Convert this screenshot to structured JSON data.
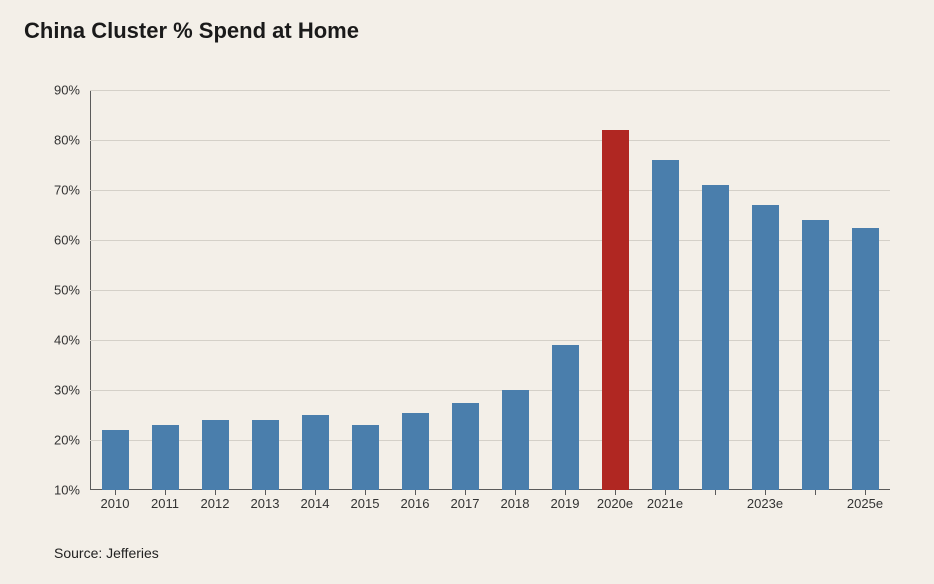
{
  "title": "China Cluster % Spend at Home",
  "source": "Source: Jefferies",
  "chart": {
    "type": "bar",
    "ymin": 10,
    "ymax": 90,
    "ytick_step": 10,
    "ytick_suffix": "%",
    "background_color": "#f3efe8",
    "grid_color": "#d4d0c8",
    "axis_color": "#5a5a5a",
    "title_fontsize": 22,
    "label_fontsize": 13,
    "bar_width_ratio": 0.54,
    "default_bar_color": "#4a7eac",
    "categories": [
      "2010",
      "2011",
      "2012",
      "2013",
      "2014",
      "2015",
      "2016",
      "2017",
      "2018",
      "2019",
      "2020e",
      "2021e",
      "",
      "2023e",
      "",
      "2025e"
    ],
    "values": [
      22,
      23,
      24,
      24,
      25,
      23,
      25.5,
      27.5,
      30,
      39,
      82,
      76,
      71,
      67,
      64,
      62.5
    ],
    "bar_colors": [
      "#4a7eac",
      "#4a7eac",
      "#4a7eac",
      "#4a7eac",
      "#4a7eac",
      "#4a7eac",
      "#4a7eac",
      "#4a7eac",
      "#4a7eac",
      "#4a7eac",
      "#b02722",
      "#4a7eac",
      "#4a7eac",
      "#4a7eac",
      "#4a7eac",
      "#4a7eac"
    ]
  }
}
